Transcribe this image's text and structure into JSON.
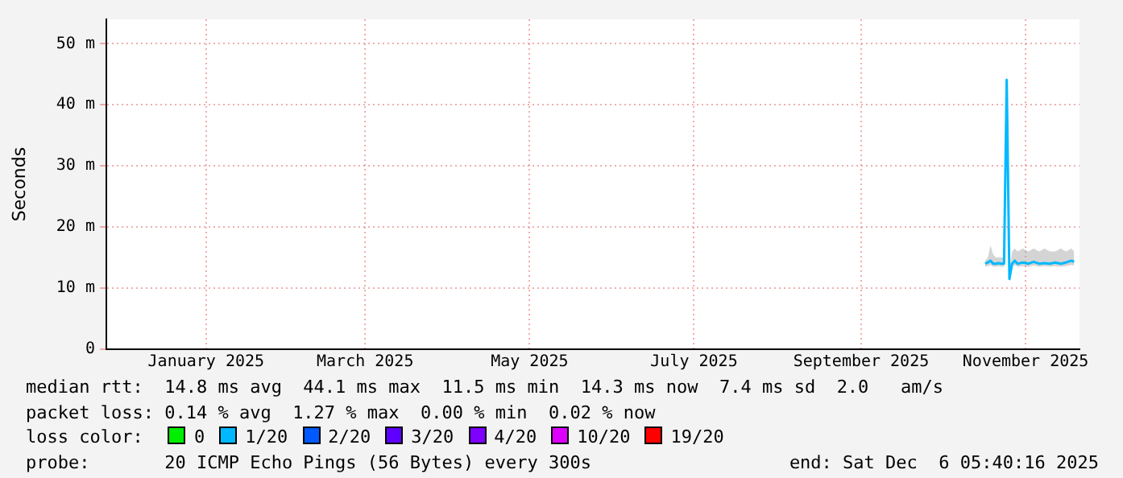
{
  "chart_data": {
    "type": "line",
    "ylabel": "Seconds",
    "legend_title": "loss color:",
    "legend": "bottom",
    "grid": true,
    "marker": "none",
    "line_style": "solid",
    "xlim": [
      "2024-12-10",
      "2025-12-06"
    ],
    "xticks": [
      {
        "value": "2025-01-16",
        "label": "January 2025"
      },
      {
        "value": "2025-03-16",
        "label": "March 2025"
      },
      {
        "value": "2025-05-16",
        "label": "May 2025"
      },
      {
        "value": "2025-07-16",
        "label": "July 2025"
      },
      {
        "value": "2025-09-16",
        "label": "September 2025"
      },
      {
        "value": "2025-11-16",
        "label": "November 2025"
      }
    ],
    "ylim": [
      0,
      54
    ],
    "yticks": [
      0,
      {
        "value": 10,
        "label": "10 m"
      },
      {
        "value": 20,
        "label": "20 m"
      },
      {
        "value": 30,
        "label": "30 m"
      },
      {
        "value": 40,
        "label": "40 m"
      },
      {
        "value": 50,
        "label": "50 m"
      }
    ],
    "x": [
      "2025-11-01",
      "2025-11-02",
      "2025-11-03",
      "2025-11-04",
      "2025-11-05",
      "2025-11-06",
      "2025-11-07",
      "2025-11-08",
      "2025-11-09",
      "2025-11-10",
      "2025-11-11",
      "2025-11-12",
      "2025-11-13",
      "2025-11-15",
      "2025-11-17",
      "2025-11-19",
      "2025-11-21",
      "2025-11-23",
      "2025-11-25",
      "2025-11-27",
      "2025-11-29",
      "2025-12-01",
      "2025-12-03",
      "2025-12-04"
    ],
    "series": [
      {
        "name": "0",
        "color": "#00ee00",
        "values": [
          null,
          null,
          null,
          null,
          null,
          null,
          null,
          null,
          null,
          null,
          null,
          null,
          null,
          null,
          null,
          null,
          null,
          null,
          null,
          null,
          null,
          null,
          null,
          null
        ]
      },
      {
        "name": "1/20",
        "color": "#00b8ff",
        "values": [
          14,
          14.2,
          14.5,
          14,
          14,
          14.1,
          14,
          14,
          44.1,
          11.5,
          14,
          14.5,
          14,
          14.2,
          14,
          14.3,
          14,
          14.1,
          14,
          14.2,
          14,
          14.2,
          14.5,
          14.3
        ],
        "lower": [
          13.5,
          13.6,
          13.8,
          13.5,
          13.5,
          13.6,
          13.5,
          13.5,
          43,
          11,
          13.5,
          13.8,
          13.5,
          13.6,
          13.5,
          13.7,
          13.5,
          13.6,
          13.5,
          13.6,
          13.5,
          13.6,
          13.8,
          13.7
        ],
        "upper": [
          14.5,
          15,
          17,
          15.5,
          15,
          15,
          15,
          15,
          46,
          12.5,
          16,
          16.5,
          16,
          16.5,
          16,
          16.5,
          16,
          16.5,
          16,
          16,
          16.5,
          16,
          16.5,
          16
        ]
      },
      {
        "name": "2/20",
        "color": "#0059ff",
        "values": [
          null,
          null,
          null,
          null,
          null,
          null,
          null,
          null,
          null,
          null,
          null,
          null,
          null,
          null,
          null,
          null,
          null,
          null,
          null,
          null,
          null,
          null,
          null,
          null
        ]
      },
      {
        "name": "3/20",
        "color": "#5e00ff",
        "values": [
          null,
          null,
          null,
          null,
          null,
          null,
          null,
          null,
          null,
          null,
          null,
          null,
          null,
          null,
          null,
          null,
          null,
          null,
          null,
          null,
          null,
          null,
          null,
          null
        ]
      },
      {
        "name": "4/20",
        "color": "#7e00ff",
        "values": [
          null,
          null,
          null,
          null,
          null,
          null,
          null,
          null,
          null,
          null,
          null,
          null,
          null,
          null,
          null,
          null,
          null,
          null,
          null,
          null,
          null,
          null,
          null,
          null
        ]
      },
      {
        "name": "10/20",
        "color": "#dd00ff",
        "values": [
          null,
          null,
          null,
          null,
          null,
          null,
          null,
          null,
          null,
          null,
          null,
          null,
          null,
          null,
          null,
          null,
          null,
          null,
          null,
          null,
          null,
          null,
          null,
          null
        ]
      },
      {
        "name": "19/20",
        "color": "#ff0000",
        "values": [
          null,
          null,
          null,
          null,
          null,
          null,
          null,
          null,
          null,
          null,
          null,
          null,
          null,
          null,
          null,
          null,
          null,
          null,
          null,
          null,
          null,
          null,
          null,
          null
        ]
      }
    ],
    "annotations": [
      "median rtt:  14.8 ms avg  44.1 ms max  11.5 ms min  14.3 ms now  7.4 ms sd  2.0   am/s",
      "packet loss: 0.14 % avg  1.27 % max  0.00 % min  0.02 % now",
      "probe:       20 ICMP Echo Pings (56 Bytes) every 300s",
      "end: Sat Dec  6 05:40:16 2025"
    ]
  }
}
